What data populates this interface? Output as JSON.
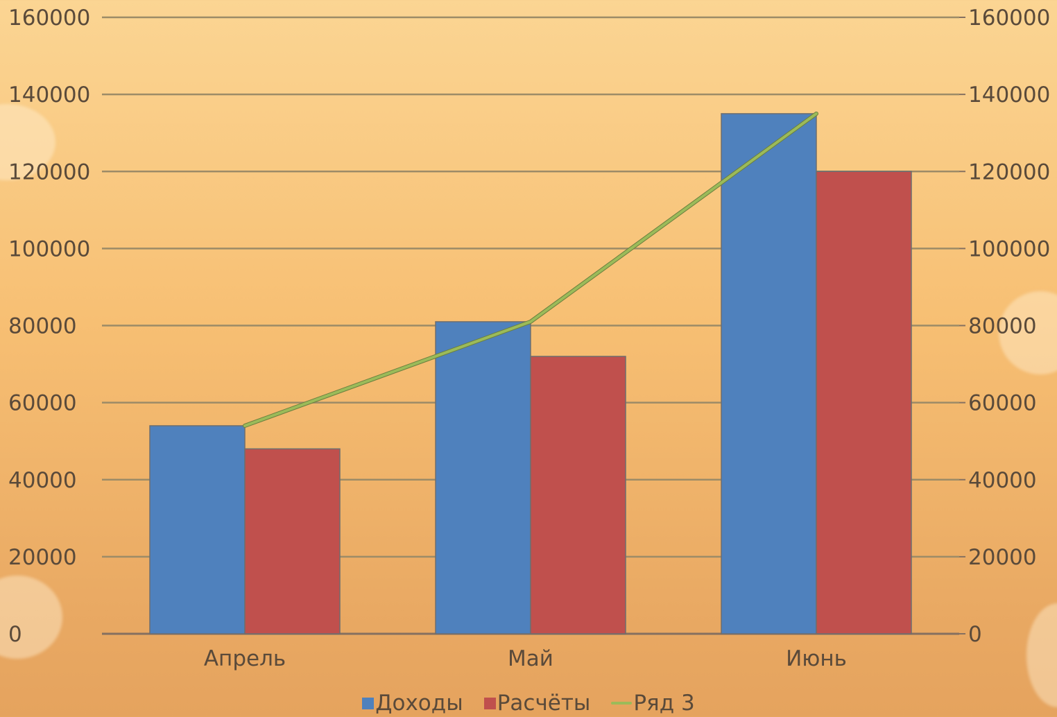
{
  "chart_data": {
    "type": "bar",
    "categories": [
      "Апрель",
      "Май",
      "Июнь"
    ],
    "series": [
      {
        "name": "Доходы",
        "type": "bar",
        "color": "#4f81bd",
        "values": [
          54000,
          81000,
          135000
        ]
      },
      {
        "name": "Расчёты",
        "type": "bar",
        "color": "#c0504d",
        "values": [
          48000,
          72000,
          120000
        ]
      },
      {
        "name": "Ряд 3",
        "type": "line",
        "color": "#9bbb59",
        "values": [
          54000,
          81000,
          135000
        ]
      }
    ],
    "y_ticks": [
      "0",
      "20000",
      "40000",
      "60000",
      "80000",
      "100000",
      "120000",
      "140000",
      "160000"
    ],
    "ylim": [
      0,
      160000
    ],
    "secondary_axis": true,
    "grid": true,
    "legend": "bottom"
  }
}
